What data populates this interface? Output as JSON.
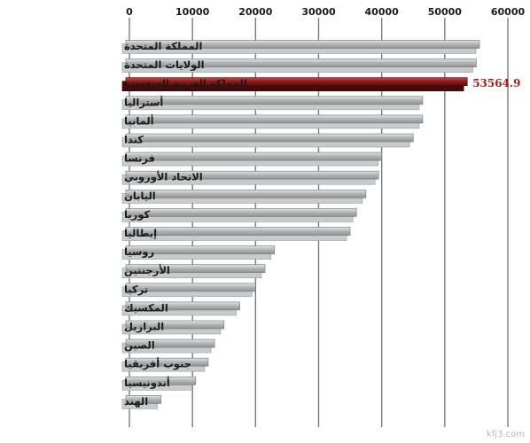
{
  "chart_data": {
    "type": "bar",
    "orientation": "horizontal",
    "title": "",
    "xlabel": "",
    "ylabel": "",
    "xlim": [
      0,
      60000
    ],
    "ticks": [
      "0",
      "10000",
      "20000",
      "30000",
      "40000",
      "50000",
      "60000"
    ],
    "tick_values": [
      0,
      10000,
      20000,
      30000,
      40000,
      50000,
      60000
    ],
    "grid": true,
    "categories": [
      "المملكة المتحدة",
      "الولايات المتحدة",
      "المملكة العربية السعودية",
      "أستراليا",
      "ألمانيا",
      "كندا",
      "فرنسا",
      "الاتحاد الأوروبي",
      "اليابان",
      "كوريا",
      "إيطاليا",
      "روسيا",
      "الأرجنتين",
      "تركيا",
      "المكسيك",
      "البرازيل",
      "الصين",
      "جنوب أفريقيا",
      "أندونيسيا",
      "الهند"
    ],
    "values": [
      55500,
      55000,
      53564.9,
      46500,
      46500,
      45000,
      40000,
      39500,
      37500,
      36000,
      35000,
      23000,
      21500,
      20000,
      17500,
      15000,
      13500,
      12500,
      10500,
      5000
    ],
    "highlight_index": 2,
    "highlight_label": "53564.9",
    "colors": {
      "bar": "#a8abab",
      "highlight": "#8b1a1a",
      "highlight_label": "#a51c1c",
      "grid": "#7a7a7a",
      "text": "#1a1a1a"
    }
  },
  "watermark": "kfj3.com"
}
